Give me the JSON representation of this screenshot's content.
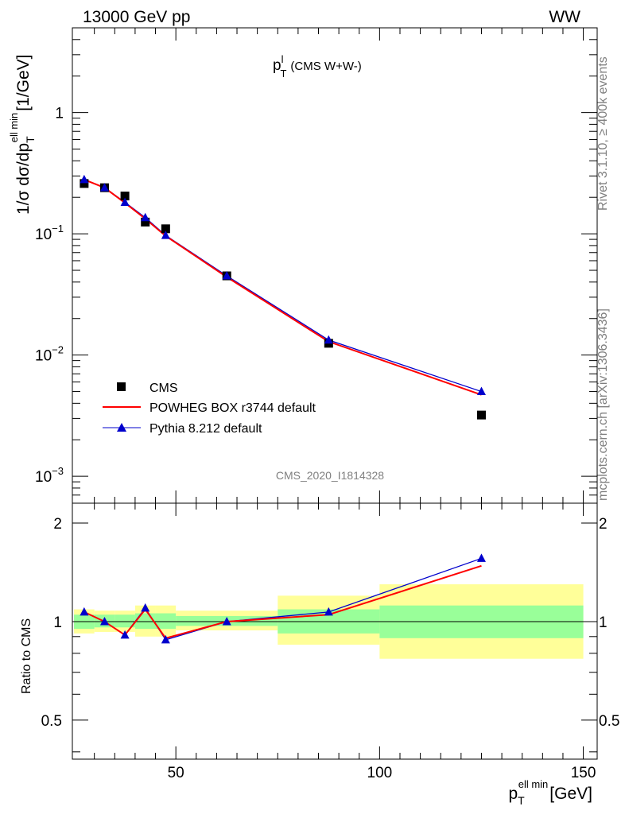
{
  "header": {
    "left": "13000 GeV pp",
    "right": "WW"
  },
  "side_text": {
    "rivet": "Rivet 3.1.10, ≥ 400k events",
    "mcplots": "mcplots.cern.ch [arXiv:1306.3436]"
  },
  "plot_title": {
    "main": "p",
    "sup": "l",
    "sub": "T",
    "rest": "(CMS W+W-)"
  },
  "analysis_id": "CMS_2020_I1814328",
  "colors": {
    "data": "#000000",
    "powheg": "#ff0000",
    "pythia": "#0000cc",
    "band_outer": "#ffff99",
    "band_inner": "#99ff99"
  },
  "chart_data": [
    {
      "type": "scatter",
      "panel": "main",
      "yscale": "log",
      "ylim": [
        0.0006,
        5
      ],
      "xlim": [
        24.6,
        153.4
      ],
      "ylabel": "1/σ dσ/dp_T^ell min [1/GeV]",
      "ylabel_parts": {
        "pre": "1/σ dσ/dp",
        "sub": "T",
        "sup": "ell min",
        "post": "[1/GeV]"
      },
      "yticks": [
        {
          "value": 0.001,
          "base": "10",
          "exp": "−3"
        },
        {
          "value": 0.01,
          "base": "10",
          "exp": "−2"
        },
        {
          "value": 0.1,
          "base": "10",
          "exp": "−1"
        },
        {
          "value": 1,
          "base": "1",
          "exp": ""
        }
      ],
      "legend_position": "lower-left",
      "series": [
        {
          "name": "CMS",
          "style": "square",
          "x": [
            27.5,
            32.5,
            37.5,
            42.5,
            47.5,
            62.5,
            87.5,
            125
          ],
          "y": [
            0.26,
            0.24,
            0.205,
            0.125,
            0.11,
            0.045,
            0.0125,
            0.0032
          ],
          "xerr": [
            2.5,
            2.5,
            2.5,
            2.5,
            2.5,
            12.5,
            12.5,
            25
          ]
        },
        {
          "name": "POWHEG BOX r3744 default",
          "style": "line",
          "x": [
            27.5,
            32.5,
            37.5,
            42.5,
            47.5,
            62.5,
            87.5,
            125
          ],
          "y": [
            0.28,
            0.24,
            0.18,
            0.133,
            0.096,
            0.044,
            0.0129,
            0.0047
          ]
        },
        {
          "name": "Pythia 8.212 default",
          "style": "triangle",
          "x": [
            27.5,
            32.5,
            37.5,
            42.5,
            47.5,
            62.5,
            87.5,
            125
          ],
          "y": [
            0.28,
            0.24,
            0.182,
            0.136,
            0.097,
            0.045,
            0.0133,
            0.005
          ]
        }
      ]
    },
    {
      "type": "line",
      "panel": "ratio",
      "ylabel": "Ratio to CMS",
      "ylim": [
        0.38,
        2.3
      ],
      "xlim": [
        24.6,
        153.4
      ],
      "yticks": [
        0.5,
        1,
        2
      ],
      "xticks": [
        50,
        100,
        150
      ],
      "xlabel_parts": {
        "pre": "p",
        "sub": "T",
        "sup": "ell min",
        "post": "[GeV]"
      },
      "bins": [
        {
          "x": [
            25,
            30
          ],
          "inner": [
            0.95,
            1.05
          ],
          "outer": [
            0.92,
            1.09
          ]
        },
        {
          "x": [
            30,
            35
          ],
          "inner": [
            0.96,
            1.05
          ],
          "outer": [
            0.93,
            1.08
          ]
        },
        {
          "x": [
            35,
            40
          ],
          "inner": [
            0.96,
            1.05
          ],
          "outer": [
            0.93,
            1.08
          ]
        },
        {
          "x": [
            40,
            45
          ],
          "inner": [
            0.95,
            1.06
          ],
          "outer": [
            0.9,
            1.12
          ]
        },
        {
          "x": [
            45,
            50
          ],
          "inner": [
            0.95,
            1.06
          ],
          "outer": [
            0.9,
            1.12
          ]
        },
        {
          "x": [
            50,
            75
          ],
          "inner": [
            0.97,
            1.04
          ],
          "outer": [
            0.94,
            1.08
          ]
        },
        {
          "x": [
            75,
            100
          ],
          "inner": [
            0.92,
            1.09
          ],
          "outer": [
            0.85,
            1.2
          ]
        },
        {
          "x": [
            100,
            150
          ],
          "inner": [
            0.89,
            1.12
          ],
          "outer": [
            0.77,
            1.3
          ]
        }
      ],
      "series": [
        {
          "name": "POWHEG BOX r3744 default",
          "x": [
            27.5,
            32.5,
            37.5,
            42.5,
            47.5,
            62.5,
            87.5,
            125
          ],
          "y": [
            1.07,
            1.0,
            0.91,
            1.09,
            0.89,
            1.0,
            1.05,
            1.48
          ]
        },
        {
          "name": "Pythia 8.212 default",
          "x": [
            27.5,
            32.5,
            37.5,
            42.5,
            47.5,
            62.5,
            87.5,
            125
          ],
          "y": [
            1.07,
            1.0,
            0.91,
            1.1,
            0.88,
            1.0,
            1.07,
            1.56
          ]
        }
      ]
    }
  ]
}
